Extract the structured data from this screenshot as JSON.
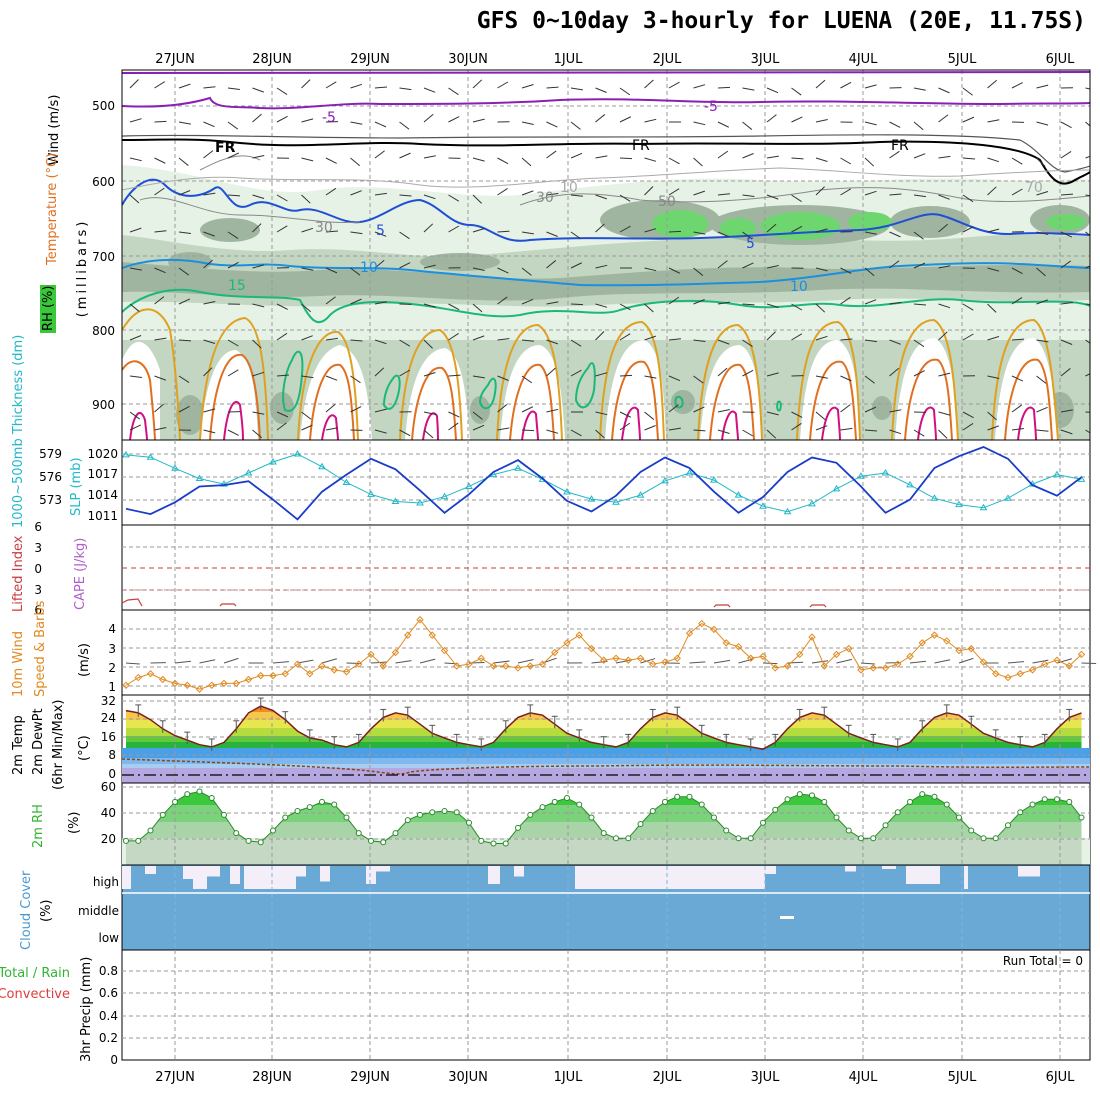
{
  "title": "GFS 0~10day 3-hourly for LUENA (20E, 11.75S)",
  "dates": [
    "27JUN",
    "28JUN",
    "29JUN",
    "30JUN",
    "1JUL",
    "2JUL",
    "3JUL",
    "4JUL",
    "5JUL",
    "6JUL"
  ],
  "colors": {
    "grid": "#9a9a9a",
    "temp_minus5": "#8a1fb5",
    "temp_freezing": "#000000",
    "temp_5": "#1f4fd6",
    "temp_10": "#1b8fe0",
    "temp_15": "#1bb87a",
    "temp_20": "#e0a020",
    "temp_25": "#e07020",
    "temp_30": "#d01080",
    "rh_light": "#e6f2e6",
    "rh_mid": "#c2d6c2",
    "rh_dark": "#9fb59f",
    "rh_green": "#6ed66e",
    "thickness": "#21b8c8",
    "slp": "#1a3cc8",
    "lifted_index": "#c83c3c",
    "cape": "#b060c8",
    "wind": "#e08a20",
    "cloud": "#6aa9d6",
    "cloud_gap": "#f4eef8"
  },
  "panels": {
    "upper": {
      "ylabel_wind": "Wind (m/s)",
      "ylabel_temp": "Temperature (°C)",
      "ylabel_rh": "RH (%)",
      "ylabel_pres": "(millibars)",
      "ticks": [
        "500",
        "600",
        "700",
        "800",
        "900"
      ],
      "contour_labels": [
        "-5",
        "-5",
        "FR",
        "FR",
        "FR",
        "5",
        "5",
        "10",
        "10",
        "15",
        "10",
        "30",
        "30",
        "50",
        "70"
      ]
    },
    "thickness": {
      "ylabel_left": "1000~500mb Thickness (dm)",
      "ylabel_right": "SLP (mb)",
      "ticks_left": [
        "579",
        "576",
        "573"
      ],
      "ticks_right": [
        "1020",
        "1017",
        "1014",
        "1011"
      ]
    },
    "li": {
      "ylabel_left": "Lifted Index",
      "ylabel_right": "CAPE (J/kg)",
      "ticks": [
        "6",
        "3",
        "0",
        "3",
        "6"
      ]
    },
    "wind": {
      "ylabel_left": "10m Wind",
      "ylabel_mid": "Speed & Barbs",
      "ylabel_unit": "(m/s)",
      "ticks": [
        "4",
        "3",
        "2",
        "1"
      ]
    },
    "temp": {
      "ylabel_1": "2m Temp",
      "ylabel_2": "2m DewPt",
      "ylabel_3": "(6hr Min/Max)",
      "ylabel_unit": "(°C)",
      "ticks": [
        "32",
        "24",
        "16",
        "8",
        "0"
      ]
    },
    "rh": {
      "ylabel": "2m RH",
      "ylabel_unit": "(%)",
      "ticks": [
        "60",
        "40",
        "20"
      ]
    },
    "cloud": {
      "ylabel": "Cloud Cover",
      "ylabel_unit": "(%)",
      "levels": [
        "high",
        "middle",
        "low"
      ]
    },
    "precip": {
      "ylabel_1": "Total / Rain",
      "ylabel_2": "Convective",
      "ylabel_3": "3hr Precip (mm)",
      "run_total": "Run Total = 0",
      "ticks": [
        "0.8",
        "0.6",
        "0.4",
        "0.2",
        "0"
      ]
    }
  },
  "chart_data": [
    {
      "type": "line",
      "name": "1000~500mb Thickness (dm)",
      "x_start": "26JUN 12Z",
      "x_step_hours": 6,
      "values": [
        579.5,
        579.2,
        577.8,
        576.5,
        575.8,
        577.2,
        578.6,
        579.6,
        578.0,
        576.0,
        574.5,
        573.6,
        573.4,
        574.2,
        575.5,
        577.0,
        577.8,
        576.4,
        574.8,
        573.9,
        573.5,
        574.4,
        576.2,
        577.2,
        576.3,
        574.4,
        573.0,
        572.3,
        573.3,
        575.2,
        576.8,
        577.2,
        575.7,
        574.0,
        573.2,
        572.8,
        574.0,
        575.8,
        577.0,
        576.4,
        575.0,
        573.6,
        573.0,
        572.4,
        573.9,
        576.0,
        577.4,
        577.8,
        576.2,
        574.4,
        573.4,
        573.0,
        574.2,
        576.4,
        578.0,
        577.6,
        575.8,
        574.0,
        573.4,
        572.6,
        573.8,
        576.0,
        578.0,
        578.4,
        577.0,
        575.2,
        574.0,
        573.8,
        574.6,
        576.6,
        578.2,
        578.6,
        577.0,
        575.4,
        574.2,
        573.4,
        572.0
      ],
      "ylim": [
        571,
        581
      ]
    },
    {
      "type": "line",
      "name": "SLP (mb)",
      "x_start": "26JUN 12Z",
      "x_step_hours": 6,
      "values": [
        1012.0,
        1011.2,
        1013.0,
        1015.4,
        1015.6,
        1016.2,
        1013.4,
        1010.4,
        1014.6,
        1017.2,
        1019.6,
        1018.0,
        1014.8,
        1011.4,
        1014.2,
        1017.6,
        1019.4,
        1016.6,
        1013.2,
        1011.6,
        1014.0,
        1017.6,
        1019.8,
        1018.2,
        1014.6,
        1011.4,
        1013.8,
        1017.6,
        1019.8,
        1019.0,
        1015.4,
        1011.4,
        1013.4,
        1018.2,
        1020.0,
        1021.4,
        1019.6,
        1015.6,
        1014.0,
        1016.8,
        1019.0,
        1019.4,
        1018.0,
        1015.0,
        1012.2,
        1015.2,
        1018.8,
        1020.6,
        1018.6,
        1015.0,
        1011.6,
        1015.0,
        1017.8,
        1019.6,
        1017.4,
        1013.8,
        1012.0,
        1014.4,
        1018.0,
        1019.6,
        1018.4,
        1015.2,
        1012.2,
        1014.6,
        1018.2,
        1019.4,
        1017.6,
        1013.8,
        1011.4,
        1014.2,
        1018.6,
        1019.6,
        1018.0,
        1014.6,
        1011.6,
        1014.8,
        1017.8,
        1019.8
      ],
      "ylim": [
        1010,
        1022
      ]
    },
    {
      "type": "line",
      "name": "10m Wind Speed (m/s)",
      "x_start": "26JUN 12Z",
      "x_step_hours": 3,
      "values": [
        1.2,
        1.6,
        1.8,
        1.5,
        1.3,
        1.2,
        1.0,
        1.2,
        1.3,
        1.3,
        1.5,
        1.7,
        1.7,
        1.8,
        2.3,
        1.8,
        2.2,
        2.0,
        1.9,
        2.3,
        2.8,
        2.2,
        2.9,
        3.8,
        4.6,
        3.8,
        3.0,
        2.2,
        2.3,
        2.6,
        2.2,
        2.2,
        2.1,
        2.2,
        2.3,
        2.9,
        3.4,
        3.8,
        3.1,
        2.5,
        2.6,
        2.5,
        2.6,
        2.3,
        2.4,
        2.6,
        3.9,
        4.4,
        4.1,
        3.4,
        3.2,
        2.6,
        2.7,
        2.1,
        2.2,
        2.8,
        3.7,
        2.2,
        2.8,
        3.1,
        2.0,
        2.1,
        2.1,
        2.3,
        2.7,
        3.4,
        3.8,
        3.5,
        3.0,
        3.1,
        2.4,
        1.8,
        1.6,
        1.8,
        2.0,
        2.3,
        2.5,
        2.2,
        2.8,
        3.4,
        4.0,
        3.2,
        2.5,
        2.7,
        2.2,
        1.9,
        2.1,
        2.0,
        3.4,
        4.0,
        3.0,
        2.6,
        2.2,
        2.2,
        2.4,
        2.3,
        2.1,
        1.7,
        2.2,
        2.6,
        2.8,
        2.4,
        2.0,
        1.8,
        2.2,
        2.6,
        3.4,
        4.6,
        3.6,
        2.8,
        2.4,
        2.3,
        2.0,
        2.0,
        2.2,
        2.6,
        2.1,
        1.8,
        2.4,
        2.9,
        3.8,
        4.8,
        3.6,
        2.8,
        2.2,
        2.4,
        2.2,
        2.3,
        2.4,
        2.6,
        3.2,
        4.0,
        3.3,
        2.6,
        2.0,
        1.9,
        2.2,
        2.8,
        2.3,
        2.2,
        2.1,
        2.0,
        2.6,
        3.2,
        3.9,
        3.3,
        2.5,
        2.1,
        2.1,
        2.0,
        1.8,
        2.0,
        2.2,
        2.0,
        2.2,
        2.8,
        4.1,
        4.6,
        3.6,
        2.7,
        2.6,
        2.4,
        2.2,
        2.2,
        1.9,
        2.1,
        2.2,
        2.5,
        3.2
      ],
      "ylim": [
        0.8,
        5
      ]
    },
    {
      "type": "area",
      "name": "2m Temp (°C)",
      "x_start": "26JUN 12Z",
      "x_step_hours": 3,
      "values": [
        28,
        27,
        24,
        20,
        17,
        15,
        13,
        12,
        14,
        20,
        27,
        30,
        28,
        24,
        19,
        16,
        15,
        13,
        12,
        14,
        20,
        25,
        27,
        26,
        22,
        18,
        16,
        14,
        13,
        12,
        14,
        20,
        25,
        27,
        26,
        22,
        18,
        16,
        14,
        13,
        12,
        14,
        20,
        25,
        27,
        26,
        22,
        18,
        16,
        14,
        13,
        12,
        11,
        14,
        20,
        25,
        27,
        26,
        22,
        18,
        16,
        14,
        13,
        12,
        14,
        20,
        25,
        27,
        26,
        22,
        18,
        16,
        14,
        13,
        12,
        14,
        20,
        25,
        27,
        26,
        22,
        18,
        16,
        14,
        13,
        12,
        14,
        20,
        26,
        28,
        27,
        22,
        18,
        16,
        14,
        13,
        12,
        14,
        20,
        26,
        28,
        27,
        22,
        18,
        16,
        14,
        13,
        13
      ],
      "ylim": [
        -3,
        34
      ]
    },
    {
      "type": "area",
      "name": "2m RH (%)",
      "x_start": "26JUN 12Z",
      "x_step_hours": 3,
      "values": [
        22,
        22,
        30,
        42,
        52,
        58,
        60,
        55,
        42,
        28,
        22,
        21,
        30,
        40,
        45,
        48,
        52,
        50,
        40,
        28,
        22,
        21,
        28,
        38,
        42,
        44,
        45,
        44,
        36,
        22,
        20,
        20,
        32,
        42,
        48,
        52,
        55,
        50,
        40,
        28,
        24,
        24,
        35,
        45,
        52,
        56,
        56,
        50,
        40,
        30,
        24,
        24,
        36,
        46,
        54,
        58,
        57,
        52,
        40,
        30,
        24,
        24,
        34,
        44,
        52,
        58,
        56,
        50,
        40,
        30,
        24,
        24,
        34,
        44,
        50,
        54,
        54,
        52,
        40,
        30,
        20,
        20,
        30,
        40,
        44,
        46,
        48,
        44,
        34,
        22,
        18,
        20,
        32,
        38,
        40,
        44,
        46,
        44
      ],
      "ylim": [
        5,
        65
      ]
    },
    {
      "type": "bar",
      "name": "3hr Precip (mm)",
      "values": [],
      "ylim": [
        0,
        0.9
      ]
    }
  ]
}
